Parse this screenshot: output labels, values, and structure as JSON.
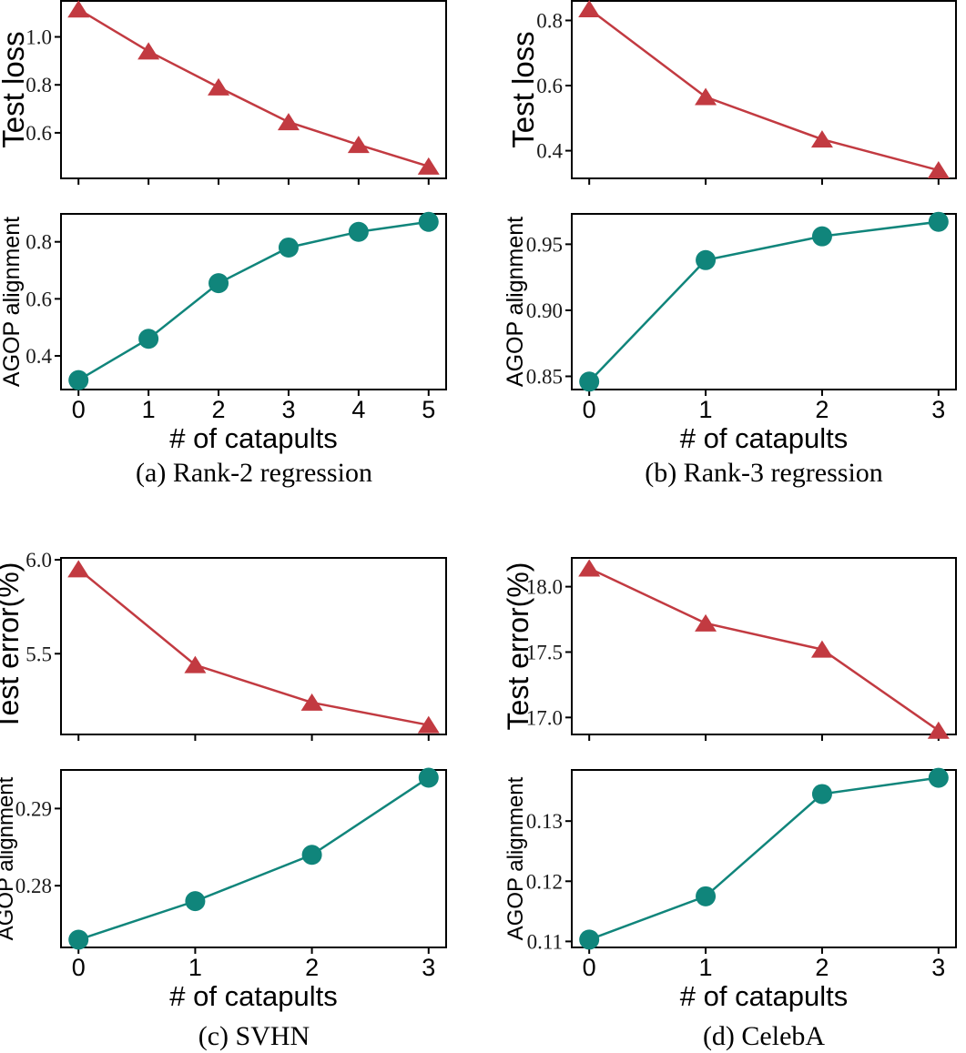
{
  "figure": {
    "captions": [
      "(a) Rank-2 regression",
      "(b) Rank-3 regression",
      "(c) SVHN",
      "(d) CelebA"
    ],
    "shared_xlabel": "# of catapults"
  },
  "colors": {
    "test_series": "#c23a41",
    "agop_series": "#10857b",
    "axis": "#000000",
    "tick_text": "#1a1a1a",
    "background": "#ffffff"
  },
  "chart_data": [
    {
      "panel": "a",
      "slot": "top",
      "type": "line",
      "ylabel": "Test loss",
      "xlabel": "",
      "marker": "triangle",
      "color_key": "test_series",
      "x": [
        0,
        1,
        2,
        3,
        4,
        5
      ],
      "y": [
        1.115,
        0.94,
        0.79,
        0.645,
        0.55,
        0.46
      ],
      "xlim": [
        -0.25,
        5.25
      ],
      "ylim": [
        0.41,
        1.15
      ],
      "xticks": [
        0,
        1,
        2,
        3,
        4,
        5
      ],
      "xtick_labels": null,
      "yticks": [
        0.6,
        0.8,
        1.0
      ],
      "ytick_labels": [
        "0.6",
        "0.8",
        "1.0"
      ],
      "grid": false,
      "legend": null
    },
    {
      "panel": "a",
      "slot": "bottom",
      "type": "line",
      "ylabel": "AGOP alignment",
      "xlabel": "# of catapults",
      "marker": "circle",
      "color_key": "agop_series",
      "x": [
        0,
        1,
        2,
        3,
        4,
        5
      ],
      "y": [
        0.315,
        0.46,
        0.655,
        0.78,
        0.835,
        0.87
      ],
      "xlim": [
        -0.25,
        5.25
      ],
      "ylim": [
        0.282,
        0.898
      ],
      "xticks": [
        0,
        1,
        2,
        3,
        4,
        5
      ],
      "xtick_labels": [
        "0",
        "1",
        "2",
        "3",
        "4",
        "5"
      ],
      "yticks": [
        0.4,
        0.6,
        0.8
      ],
      "ytick_labels": [
        "0.4",
        "0.6",
        "0.8"
      ],
      "grid": false,
      "legend": null
    },
    {
      "panel": "b",
      "slot": "top",
      "type": "line",
      "ylabel": "Test loss",
      "xlabel": "",
      "marker": "triangle",
      "color_key": "test_series",
      "x": [
        0,
        1,
        2,
        3
      ],
      "y": [
        0.835,
        0.565,
        0.435,
        0.34
      ],
      "xlim": [
        -0.15,
        3.15
      ],
      "ylim": [
        0.315,
        0.86
      ],
      "xticks": [
        0,
        1,
        2,
        3
      ],
      "xtick_labels": null,
      "yticks": [
        0.4,
        0.6,
        0.8
      ],
      "ytick_labels": [
        "0.4",
        "0.6",
        "0.8"
      ],
      "grid": false,
      "legend": null
    },
    {
      "panel": "b",
      "slot": "bottom",
      "type": "line",
      "ylabel": "AGOP alignment",
      "xlabel": "# of catapults",
      "marker": "circle",
      "color_key": "agop_series",
      "x": [
        0,
        1,
        2,
        3
      ],
      "y": [
        0.846,
        0.938,
        0.956,
        0.967
      ],
      "xlim": [
        -0.15,
        3.15
      ],
      "ylim": [
        0.84,
        0.973
      ],
      "xticks": [
        0,
        1,
        2,
        3
      ],
      "xtick_labels": [
        "0",
        "1",
        "2",
        "3"
      ],
      "yticks": [
        0.85,
        0.9,
        0.95
      ],
      "ytick_labels": [
        "0.85",
        "0.90",
        "0.95"
      ],
      "grid": false,
      "legend": null
    },
    {
      "panel": "c",
      "slot": "top",
      "type": "line",
      "ylabel": "Test error(%)",
      "xlabel": "",
      "marker": "triangle",
      "color_key": "test_series",
      "x": [
        0,
        1,
        2,
        3
      ],
      "y": [
        5.95,
        5.44,
        5.24,
        5.12
      ],
      "xlim": [
        -0.15,
        3.15
      ],
      "ylim": [
        5.07,
        6.01
      ],
      "xticks": [
        0,
        1,
        2,
        3
      ],
      "xtick_labels": null,
      "yticks": [
        5.5,
        6.0
      ],
      "ytick_labels": [
        "5.5",
        "6.0"
      ],
      "grid": false,
      "legend": null
    },
    {
      "panel": "c",
      "slot": "bottom",
      "type": "line",
      "ylabel": "AGOP alignment",
      "xlabel": "# of catapults",
      "marker": "circle",
      "color_key": "agop_series",
      "x": [
        0,
        1,
        2,
        3
      ],
      "y": [
        0.273,
        0.278,
        0.284,
        0.294
      ],
      "xlim": [
        -0.15,
        3.15
      ],
      "ylim": [
        0.272,
        0.295
      ],
      "xticks": [
        0,
        1,
        2,
        3
      ],
      "xtick_labels": [
        "0",
        "1",
        "2",
        "3"
      ],
      "yticks": [
        0.28,
        0.29
      ],
      "ytick_labels": [
        "0.28",
        "0.29"
      ],
      "grid": false,
      "legend": null
    },
    {
      "panel": "d",
      "slot": "top",
      "type": "line",
      "ylabel": "Test error(%)",
      "xlabel": "",
      "marker": "triangle",
      "color_key": "test_series",
      "x": [
        0,
        1,
        2,
        3
      ],
      "y": [
        18.14,
        17.72,
        17.52,
        16.9
      ],
      "xlim": [
        -0.15,
        3.15
      ],
      "ylim": [
        16.87,
        18.22
      ],
      "xticks": [
        0,
        1,
        2,
        3
      ],
      "xtick_labels": null,
      "yticks": [
        17.0,
        17.5,
        18.0
      ],
      "ytick_labels": [
        "17.0",
        "17.5",
        "18.0"
      ],
      "grid": false,
      "legend": null
    },
    {
      "panel": "d",
      "slot": "bottom",
      "type": "line",
      "ylabel": "AGOP alignment",
      "xlabel": "# of catapults",
      "marker": "circle",
      "color_key": "agop_series",
      "x": [
        0,
        1,
        2,
        3
      ],
      "y": [
        0.1103,
        0.1175,
        0.1345,
        0.1372
      ],
      "xlim": [
        -0.15,
        3.15
      ],
      "ylim": [
        0.109,
        0.1385
      ],
      "xticks": [
        0,
        1,
        2,
        3
      ],
      "xtick_labels": [
        "0",
        "1",
        "2",
        "3"
      ],
      "yticks": [
        0.11,
        0.12,
        0.13
      ],
      "ytick_labels": [
        "0.11",
        "0.12",
        "0.13"
      ],
      "grid": false,
      "legend": null
    }
  ]
}
